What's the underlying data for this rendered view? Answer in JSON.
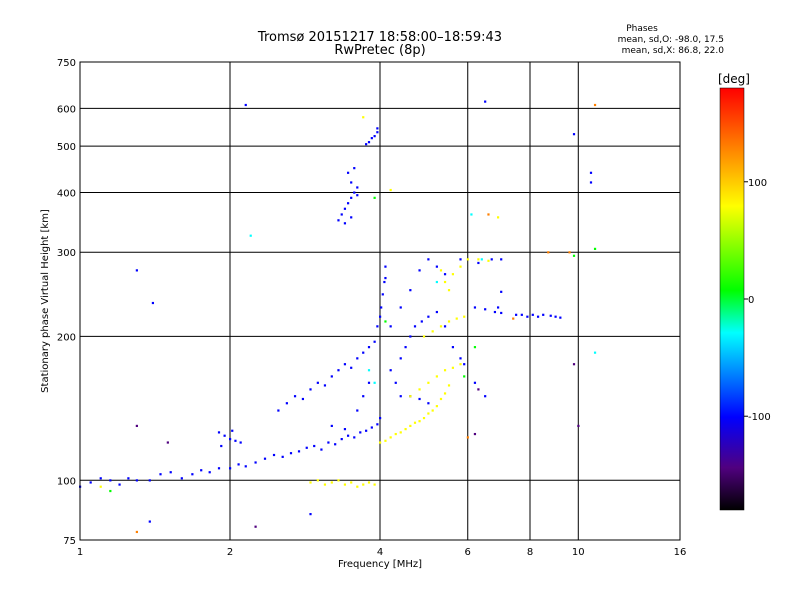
{
  "chart_data": {
    "type": "scatter",
    "title": "Tromsø 20151217 18:58:00–18:59:43",
    "subtitle": "RwPretec (8p)",
    "xlabel": "Frequency [MHz]",
    "ylabel": "Stationary phase Virtual Height [km]",
    "x_scale": "log2",
    "y_scale": "log",
    "xlim": [
      1,
      16
    ],
    "ylim": [
      75,
      750
    ],
    "x_ticks": [
      1,
      2,
      4,
      6,
      8,
      10,
      16
    ],
    "y_ticks": [
      75,
      100,
      200,
      300,
      400,
      500,
      600,
      750
    ],
    "grid": true,
    "phases_header": "Phases",
    "phase_stats": [
      "mean, sd,O: -98.0, 17.5",
      "mean, sd,X:  86.8, 22.0"
    ],
    "colorbar": {
      "label": "[deg]",
      "ticks": [
        100,
        0,
        -100
      ],
      "range": [
        -180,
        180
      ],
      "colors": [
        "#ff0000",
        "#ff8000",
        "#ffff00",
        "#00ff00",
        "#00ffff",
        "#0000ff",
        "#50007f",
        "#000000"
      ]
    },
    "series": [
      {
        "phase": -100,
        "points": [
          [
            1.0,
            97
          ],
          [
            1.05,
            99
          ],
          [
            1.1,
            101
          ],
          [
            1.15,
            100
          ],
          [
            1.2,
            98
          ],
          [
            1.25,
            101
          ],
          [
            1.3,
            100
          ],
          [
            1.38,
            100
          ],
          [
            1.45,
            103
          ],
          [
            1.52,
            104
          ],
          [
            1.6,
            101
          ],
          [
            1.68,
            103
          ],
          [
            1.75,
            105
          ],
          [
            1.82,
            104
          ],
          [
            1.9,
            106
          ],
          [
            2.0,
            106
          ],
          [
            2.08,
            108
          ],
          [
            2.15,
            107
          ],
          [
            2.25,
            109
          ],
          [
            2.35,
            111
          ],
          [
            2.45,
            113
          ],
          [
            2.55,
            112
          ],
          [
            2.65,
            114
          ],
          [
            2.75,
            115
          ],
          [
            2.85,
            117
          ],
          [
            2.95,
            118
          ],
          [
            3.05,
            116
          ],
          [
            3.15,
            120
          ],
          [
            3.25,
            119
          ],
          [
            3.35,
            122
          ],
          [
            3.45,
            124
          ],
          [
            3.55,
            123
          ],
          [
            3.65,
            126
          ],
          [
            3.75,
            127
          ],
          [
            3.85,
            129
          ],
          [
            3.95,
            131
          ],
          [
            4.0,
            135
          ],
          [
            1.9,
            126
          ],
          [
            1.95,
            124
          ],
          [
            2.0,
            122
          ],
          [
            2.05,
            121
          ],
          [
            2.1,
            120
          ],
          [
            1.92,
            118
          ],
          [
            2.02,
            127
          ],
          [
            2.5,
            140
          ],
          [
            2.6,
            145
          ],
          [
            2.7,
            150
          ],
          [
            2.8,
            148
          ],
          [
            2.9,
            155
          ],
          [
            3.0,
            160
          ],
          [
            3.1,
            158
          ],
          [
            3.2,
            165
          ],
          [
            3.3,
            170
          ],
          [
            3.4,
            175
          ],
          [
            3.5,
            172
          ],
          [
            3.6,
            180
          ],
          [
            3.7,
            185
          ],
          [
            3.8,
            190
          ],
          [
            3.9,
            195
          ],
          [
            3.95,
            210
          ],
          [
            4.0,
            220
          ],
          [
            4.02,
            230
          ],
          [
            4.05,
            245
          ],
          [
            4.08,
            260
          ],
          [
            4.1,
            265
          ],
          [
            4.1,
            280
          ],
          [
            3.2,
            130
          ],
          [
            3.4,
            128
          ],
          [
            3.6,
            140
          ],
          [
            3.7,
            150
          ],
          [
            3.8,
            160
          ],
          [
            4.2,
            170
          ],
          [
            4.3,
            160
          ],
          [
            4.4,
            180
          ],
          [
            4.5,
            190
          ],
          [
            4.6,
            200
          ],
          [
            4.7,
            210
          ],
          [
            4.85,
            215
          ],
          [
            5.0,
            220
          ],
          [
            5.2,
            225
          ],
          [
            5.4,
            210
          ],
          [
            5.6,
            190
          ],
          [
            5.8,
            180
          ],
          [
            5.9,
            175
          ],
          [
            4.4,
            150
          ],
          [
            4.6,
            150
          ],
          [
            4.8,
            148
          ],
          [
            5.0,
            145
          ],
          [
            4.2,
            210
          ],
          [
            4.4,
            230
          ],
          [
            4.6,
            250
          ],
          [
            4.8,
            275
          ],
          [
            5.0,
            290
          ],
          [
            5.2,
            280
          ],
          [
            5.4,
            270
          ],
          [
            3.3,
            350
          ],
          [
            3.35,
            360
          ],
          [
            3.4,
            370
          ],
          [
            3.45,
            380
          ],
          [
            3.5,
            390
          ],
          [
            3.55,
            400
          ],
          [
            3.6,
            410
          ],
          [
            3.4,
            345
          ],
          [
            3.5,
            355
          ],
          [
            3.6,
            395
          ],
          [
            3.5,
            420
          ],
          [
            3.45,
            440
          ],
          [
            3.55,
            450
          ],
          [
            3.75,
            505
          ],
          [
            3.8,
            510
          ],
          [
            3.85,
            520
          ],
          [
            3.9,
            525
          ],
          [
            3.95,
            535
          ],
          [
            3.95,
            545
          ],
          [
            2.15,
            610
          ],
          [
            9.8,
            530
          ],
          [
            10.6,
            440
          ],
          [
            10.6,
            420
          ],
          [
            1.3,
            275
          ],
          [
            1.4,
            235
          ],
          [
            6.5,
            620
          ],
          [
            7.5,
            222
          ],
          [
            7.7,
            222
          ],
          [
            7.9,
            220
          ],
          [
            8.1,
            222
          ],
          [
            8.3,
            220
          ],
          [
            8.5,
            222
          ],
          [
            8.8,
            221
          ],
          [
            9.0,
            220
          ],
          [
            9.2,
            219
          ],
          [
            6.2,
            230
          ],
          [
            6.5,
            228
          ],
          [
            6.8,
            225
          ],
          [
            7.0,
            224
          ],
          [
            6.7,
            290
          ],
          [
            7.0,
            290
          ],
          [
            6.3,
            285
          ],
          [
            5.8,
            290
          ],
          [
            6.2,
            160
          ],
          [
            6.5,
            150
          ],
          [
            6.9,
            230
          ],
          [
            7.0,
            248
          ],
          [
            1.38,
            82
          ],
          [
            2.9,
            85
          ]
        ]
      },
      {
        "phase": 100,
        "points": [
          [
            2.9,
            99
          ],
          [
            3.0,
            100
          ],
          [
            3.1,
            98
          ],
          [
            3.2,
            99
          ],
          [
            3.3,
            100
          ],
          [
            3.4,
            98
          ],
          [
            3.5,
            99
          ],
          [
            3.6,
            97
          ],
          [
            3.7,
            98
          ],
          [
            3.8,
            99
          ],
          [
            3.9,
            98
          ],
          [
            4.0,
            120
          ],
          [
            4.1,
            121
          ],
          [
            4.2,
            123
          ],
          [
            4.3,
            125
          ],
          [
            4.4,
            126
          ],
          [
            4.5,
            128
          ],
          [
            4.6,
            130
          ],
          [
            4.7,
            132
          ],
          [
            4.8,
            133
          ],
          [
            4.9,
            135
          ],
          [
            5.0,
            138
          ],
          [
            5.1,
            140
          ],
          [
            5.2,
            143
          ],
          [
            5.3,
            148
          ],
          [
            5.4,
            152
          ],
          [
            5.5,
            158
          ],
          [
            4.6,
            150
          ],
          [
            4.8,
            155
          ],
          [
            5.0,
            160
          ],
          [
            5.2,
            165
          ],
          [
            5.4,
            170
          ],
          [
            5.6,
            172
          ],
          [
            5.8,
            175
          ],
          [
            4.9,
            200
          ],
          [
            5.1,
            205
          ],
          [
            5.3,
            210
          ],
          [
            5.5,
            215
          ],
          [
            5.7,
            218
          ],
          [
            5.9,
            220
          ],
          [
            5.4,
            260
          ],
          [
            5.6,
            270
          ],
          [
            5.8,
            280
          ],
          [
            6.0,
            290
          ],
          [
            6.3,
            290
          ],
          [
            6.6,
            288
          ],
          [
            5.3,
            275
          ],
          [
            5.5,
            250
          ],
          [
            3.7,
            575
          ],
          [
            6.9,
            355
          ],
          [
            4.2,
            405
          ],
          [
            1.1,
            97
          ]
        ]
      },
      {
        "phase": 150,
        "points": [
          [
            6.6,
            360
          ],
          [
            10.8,
            610
          ],
          [
            8.7,
            300
          ],
          [
            9.6,
            300
          ],
          [
            6.0,
            123
          ],
          [
            7.4,
            218
          ],
          [
            1.3,
            78
          ]
        ]
      },
      {
        "phase": 10,
        "points": [
          [
            3.9,
            390
          ],
          [
            4.1,
            215
          ],
          [
            5.9,
            165
          ],
          [
            6.2,
            190
          ],
          [
            1.15,
            95
          ],
          [
            9.8,
            295
          ],
          [
            10.8,
            305
          ]
        ]
      },
      {
        "phase": -20,
        "points": [
          [
            6.1,
            360
          ],
          [
            6.4,
            290
          ],
          [
            5.2,
            260
          ],
          [
            3.8,
            170
          ],
          [
            3.9,
            160
          ],
          [
            10.8,
            185
          ],
          [
            2.2,
            325
          ]
        ]
      },
      {
        "phase": -140,
        "points": [
          [
            1.3,
            130
          ],
          [
            1.5,
            120
          ],
          [
            9.8,
            175
          ],
          [
            10.0,
            130
          ],
          [
            6.2,
            125
          ],
          [
            6.3,
            155
          ],
          [
            2.25,
            80
          ]
        ]
      }
    ]
  }
}
